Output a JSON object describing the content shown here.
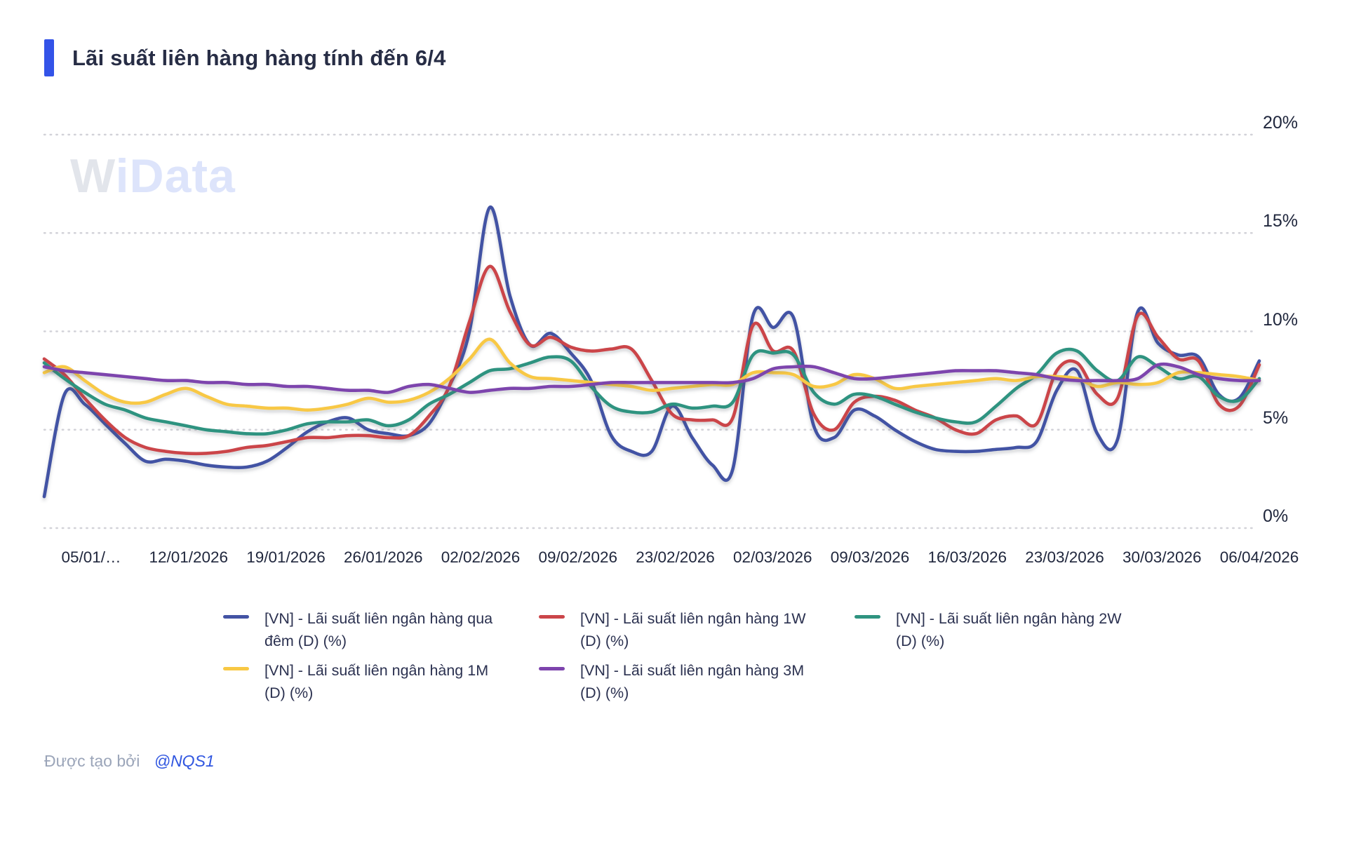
{
  "title": {
    "text": "Lãi suất liên hàng hàng tính đến 6/4",
    "accent_color": "#3353e8"
  },
  "watermark": {
    "part1": "W",
    "part2": "iData"
  },
  "footer": {
    "prefix": "Được tạo bởi",
    "author": "@NQS1"
  },
  "chart_data": {
    "type": "line",
    "title": "Lãi suất liên hàng hàng tính đến 6/4",
    "ylim": [
      0,
      20
    ],
    "y_tick_values": [
      20,
      15,
      10,
      5,
      0
    ],
    "y_tick_labels": [
      "20%",
      "15%",
      "10%",
      "5%",
      "0%"
    ],
    "x_tick_labels": [
      "05/01/…",
      "12/01/2026",
      "19/01/2026",
      "26/01/2026",
      "02/02/2026",
      "09/02/2026",
      "23/02/2026",
      "02/03/2026",
      "09/03/2026",
      "16/03/2026",
      "23/03/2026",
      "30/03/2026",
      "06/04/2026"
    ],
    "grid": "horizontal-dotted",
    "legend_position": "bottom",
    "unit": "%",
    "series": [
      {
        "id": "overnight",
        "name": "[VN] - Lãi suất liên ngân hàng qua đêm (D) (%)",
        "color": "#4353a4",
        "values": [
          1.6,
          6.8,
          6.3,
          5.3,
          4.3,
          3.4,
          3.5,
          3.4,
          3.2,
          3.1,
          3.1,
          3.4,
          4.1,
          4.9,
          5.4,
          5.6,
          5.0,
          4.8,
          4.7,
          5.3,
          7.2,
          10.0,
          16.3,
          11.8,
          9.3,
          9.9,
          8.9,
          7.5,
          4.7,
          3.9,
          3.9,
          6.2,
          4.6,
          3.2,
          3.0,
          10.8,
          10.2,
          10.7,
          5.2,
          4.6,
          6.0,
          5.7,
          5.0,
          4.4,
          4.0,
          3.9,
          3.9,
          4.0,
          4.1,
          4.4,
          7.0,
          8.0,
          4.8,
          4.5,
          11.0,
          9.4,
          8.8,
          8.7,
          6.8,
          6.6,
          8.5
        ]
      },
      {
        "id": "1w",
        "name": "[VN] - Lãi suất liên ngân hàng 1W (D) (%)",
        "color": "#cb4549",
        "values": [
          8.6,
          7.8,
          6.6,
          5.5,
          4.6,
          4.1,
          3.9,
          3.8,
          3.8,
          3.9,
          4.1,
          4.2,
          4.4,
          4.6,
          4.6,
          4.7,
          4.7,
          4.6,
          4.7,
          5.7,
          7.2,
          10.5,
          13.3,
          11.0,
          9.3,
          9.7,
          9.2,
          9.0,
          9.1,
          9.1,
          7.5,
          5.8,
          5.5,
          5.5,
          5.6,
          10.3,
          9.0,
          9.0,
          5.8,
          5.0,
          6.4,
          6.7,
          6.5,
          6.0,
          5.6,
          5.0,
          4.8,
          5.5,
          5.7,
          5.3,
          8.0,
          8.4,
          6.8,
          6.6,
          10.8,
          9.7,
          8.6,
          8.5,
          6.3,
          6.2,
          8.3
        ]
      },
      {
        "id": "2w",
        "name": "[VN] - Lãi suất liên ngân hàng 2W (D) (%)",
        "color": "#2f9380",
        "values": [
          8.4,
          7.6,
          6.9,
          6.3,
          6.0,
          5.6,
          5.4,
          5.2,
          5.0,
          4.9,
          4.8,
          4.8,
          5.0,
          5.3,
          5.4,
          5.4,
          5.5,
          5.2,
          5.5,
          6.3,
          6.8,
          7.4,
          8.0,
          8.1,
          8.4,
          8.7,
          8.5,
          7.2,
          6.2,
          5.9,
          5.9,
          6.3,
          6.1,
          6.2,
          6.4,
          8.8,
          8.9,
          8.8,
          6.9,
          6.3,
          6.8,
          6.7,
          6.3,
          5.9,
          5.6,
          5.4,
          5.4,
          6.2,
          7.1,
          7.8,
          8.9,
          9.0,
          8.0,
          7.5,
          8.7,
          8.2,
          7.6,
          7.7,
          6.7,
          6.5,
          7.6
        ]
      },
      {
        "id": "1m",
        "name": "[VN] - Lãi suất liên ngân hàng 1M (D) (%)",
        "color": "#f8c844",
        "values": [
          7.9,
          8.2,
          7.5,
          6.8,
          6.4,
          6.4,
          6.8,
          7.1,
          6.7,
          6.3,
          6.2,
          6.1,
          6.1,
          6.0,
          6.1,
          6.3,
          6.6,
          6.4,
          6.5,
          6.9,
          7.6,
          8.6,
          9.6,
          8.4,
          7.7,
          7.6,
          7.5,
          7.4,
          7.3,
          7.2,
          7.0,
          7.1,
          7.2,
          7.3,
          7.3,
          7.9,
          7.9,
          7.8,
          7.2,
          7.3,
          7.8,
          7.6,
          7.1,
          7.2,
          7.3,
          7.4,
          7.5,
          7.6,
          7.5,
          7.7,
          7.7,
          7.6,
          7.2,
          7.4,
          7.3,
          7.4,
          7.9,
          7.9,
          7.8,
          7.7,
          7.5
        ]
      },
      {
        "id": "3m",
        "name": "[VN] - Lãi suất liên ngân hàng 3M (D) (%)",
        "color": "#7d44ad",
        "values": [
          8.2,
          8.0,
          7.9,
          7.8,
          7.7,
          7.6,
          7.5,
          7.5,
          7.4,
          7.4,
          7.3,
          7.3,
          7.2,
          7.2,
          7.1,
          7.0,
          7.0,
          6.9,
          7.2,
          7.3,
          7.1,
          6.9,
          7.0,
          7.1,
          7.1,
          7.2,
          7.2,
          7.3,
          7.4,
          7.4,
          7.4,
          7.4,
          7.4,
          7.4,
          7.4,
          7.6,
          8.1,
          8.2,
          8.2,
          7.9,
          7.6,
          7.6,
          7.7,
          7.8,
          7.9,
          8.0,
          8.0,
          8.0,
          7.9,
          7.8,
          7.6,
          7.5,
          7.5,
          7.5,
          7.6,
          8.3,
          8.2,
          7.8,
          7.6,
          7.5,
          7.5
        ]
      }
    ]
  }
}
